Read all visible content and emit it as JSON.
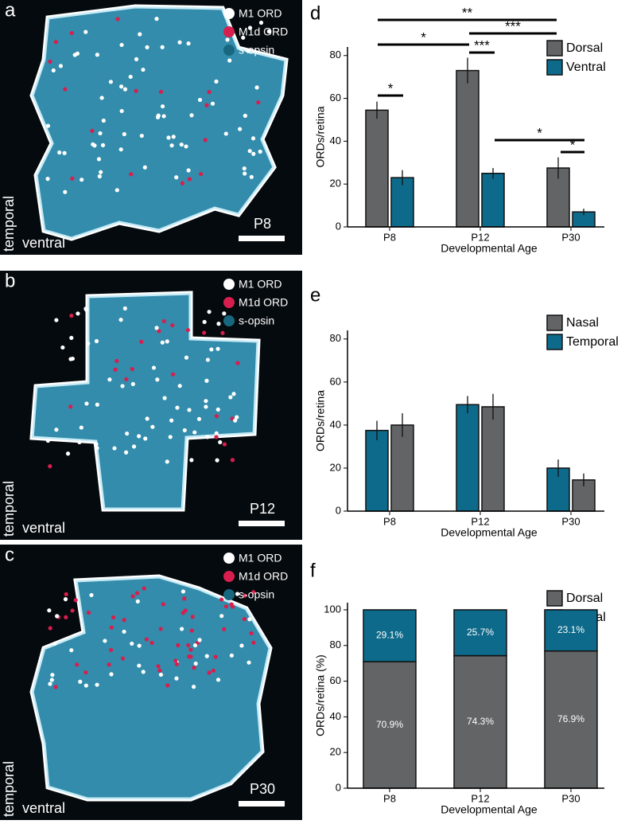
{
  "image_panels": [
    {
      "letter": "a",
      "legend": [
        {
          "label": "M1 ORD",
          "color": "#ffffff"
        },
        {
          "label": "M1d ORD",
          "color": "#d81e4e"
        },
        {
          "label": "s-opsin",
          "color": "#17687f"
        }
      ],
      "side_label": "temporal",
      "bottom_label": "ventral",
      "age": "P8"
    },
    {
      "letter": "b",
      "legend": [
        {
          "label": "M1 ORD",
          "color": "#ffffff"
        },
        {
          "label": "M1d ORD",
          "color": "#d81e4e"
        },
        {
          "label": "s-opsin",
          "color": "#17687f"
        }
      ],
      "side_label": "temporal",
      "bottom_label": "ventral",
      "age": "P12"
    },
    {
      "letter": "c",
      "legend": [
        {
          "label": "M1 ORD",
          "color": "#ffffff"
        },
        {
          "label": "M1d ORD",
          "color": "#d81e4e"
        },
        {
          "label": "s-opsin",
          "color": "#17687f"
        }
      ],
      "side_label": "temporal",
      "bottom_label": "ventral",
      "age": "P30"
    }
  ],
  "chart_data": [
    {
      "type": "bar",
      "letter": "d",
      "xlabel": "Developmental Age",
      "ylabel": "ORDs/retina",
      "categories": [
        "P8",
        "P12",
        "P30"
      ],
      "series": [
        {
          "name": "Dorsal",
          "color": "#636466",
          "values": [
            54.5,
            73,
            27.5
          ],
          "errors": [
            4,
            6,
            5
          ]
        },
        {
          "name": "Ventral",
          "color": "#0e6a8a",
          "values": [
            23,
            25,
            7
          ],
          "errors": [
            3.5,
            2.5,
            1.5
          ]
        }
      ],
      "ylim": [
        0,
        84
      ],
      "yticks": [
        0,
        20,
        40,
        60,
        80
      ],
      "significance": [
        "*",
        "**",
        "*",
        "***",
        "***",
        "*",
        "*"
      ]
    },
    {
      "type": "bar",
      "letter": "e",
      "xlabel": "Developmental Age",
      "ylabel": "ORDs/retina",
      "categories": [
        "P8",
        "P12",
        "P30"
      ],
      "series": [
        {
          "name": "Nasal",
          "color": "#636466",
          "values": [
            40,
            48.5,
            14.5
          ],
          "errors": [
            5.5,
            6,
            3
          ]
        },
        {
          "name": "Temporal",
          "color": "#0e6a8a",
          "values": [
            37.5,
            49.5,
            20
          ],
          "errors": [
            4.5,
            4,
            4
          ]
        }
      ],
      "ylim": [
        0,
        84
      ],
      "yticks": [
        0,
        20,
        40,
        60,
        80
      ]
    },
    {
      "type": "stacked_bar",
      "letter": "f",
      "xlabel": "Developmental Age",
      "ylabel": "ORDs/retina (%)",
      "categories": [
        "P8",
        "P12",
        "P30"
      ],
      "series": [
        {
          "name": "Dorsal",
          "color": "#636466",
          "values": [
            70.9,
            74.3,
            76.9
          ],
          "value_labels": [
            "70.9%",
            "74.3%",
            "76.9%"
          ]
        },
        {
          "name": "Ventral",
          "color": "#0e6a8a",
          "values": [
            29.1,
            25.7,
            23.1
          ],
          "value_labels": [
            "29.1%",
            "25.7%",
            "23.1%"
          ]
        }
      ],
      "ylim": [
        0,
        104
      ],
      "yticks": [
        0,
        20,
        40,
        60,
        80,
        100
      ]
    }
  ]
}
